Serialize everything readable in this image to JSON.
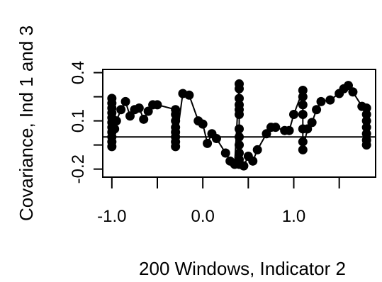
{
  "chart_data": {
    "type": "scatter",
    "connected": true,
    "xlabel": "200 Windows, Indicator 2",
    "ylabel": "Covariance, Ind 1 and 3",
    "xlim": [
      -1.1,
      1.9
    ],
    "ylim": [
      -0.25,
      0.42
    ],
    "xticks": [
      -1.0,
      -0.5,
      0.0,
      0.5,
      1.0,
      1.5
    ],
    "xtick_labels": [
      "-1.0",
      "",
      "0.0",
      "",
      "1.0",
      ""
    ],
    "yticks": [
      -0.2,
      -0.05,
      0.1,
      0.25,
      0.4
    ],
    "ytick_labels": [
      "-0.2",
      "",
      "0.1",
      "",
      "0.4"
    ],
    "hline": 0,
    "grid": false,
    "points": [
      [
        -1.0,
        0.24
      ],
      [
        -1.0,
        0.21
      ],
      [
        -1.0,
        0.18
      ],
      [
        -1.0,
        0.15
      ],
      [
        -1.0,
        0.12
      ],
      [
        -1.0,
        0.09
      ],
      [
        -1.0,
        0.06
      ],
      [
        -1.0,
        0.03
      ],
      [
        -1.0,
        0.0
      ],
      [
        -1.0,
        -0.03
      ],
      [
        -1.0,
        -0.06
      ],
      [
        -0.97,
        0.05
      ],
      [
        -0.95,
        0.1
      ],
      [
        -0.9,
        0.17
      ],
      [
        -0.85,
        0.22
      ],
      [
        -0.8,
        0.13
      ],
      [
        -0.75,
        0.17
      ],
      [
        -0.7,
        0.18
      ],
      [
        -0.65,
        0.11
      ],
      [
        -0.6,
        0.16
      ],
      [
        -0.55,
        0.2
      ],
      [
        -0.5,
        0.2
      ],
      [
        -0.3,
        0.17
      ],
      [
        -0.3,
        0.14
      ],
      [
        -0.3,
        0.1
      ],
      [
        -0.3,
        0.06
      ],
      [
        -0.3,
        0.03
      ],
      [
        -0.3,
        0.0
      ],
      [
        -0.3,
        -0.03
      ],
      [
        -0.3,
        -0.06
      ],
      [
        -0.22,
        0.27
      ],
      [
        -0.15,
        0.26
      ],
      [
        -0.05,
        0.1
      ],
      [
        0.0,
        0.08
      ],
      [
        0.05,
        -0.04
      ],
      [
        0.1,
        0.02
      ],
      [
        0.15,
        -0.01
      ],
      [
        0.25,
        -0.1
      ],
      [
        0.3,
        -0.15
      ],
      [
        0.35,
        -0.17
      ],
      [
        0.4,
        0.33
      ],
      [
        0.4,
        0.3
      ],
      [
        0.4,
        0.24
      ],
      [
        0.4,
        0.2
      ],
      [
        0.4,
        0.17
      ],
      [
        0.4,
        0.14
      ],
      [
        0.4,
        0.05
      ],
      [
        0.4,
        0.0
      ],
      [
        0.4,
        -0.05
      ],
      [
        0.4,
        -0.1
      ],
      [
        0.4,
        -0.14
      ],
      [
        0.4,
        -0.17
      ],
      [
        0.45,
        -0.18
      ],
      [
        0.5,
        -0.12
      ],
      [
        0.55,
        -0.15
      ],
      [
        0.6,
        -0.08
      ],
      [
        0.7,
        0.02
      ],
      [
        0.75,
        0.06
      ],
      [
        0.8,
        0.06
      ],
      [
        0.9,
        0.04
      ],
      [
        0.95,
        0.04
      ],
      [
        1.0,
        0.14
      ],
      [
        1.1,
        0.29
      ],
      [
        1.1,
        0.25
      ],
      [
        1.1,
        0.2
      ],
      [
        1.1,
        0.14
      ],
      [
        1.1,
        0.05
      ],
      [
        1.1,
        -0.03
      ],
      [
        1.1,
        -0.08
      ],
      [
        1.15,
        0.05
      ],
      [
        1.2,
        0.09
      ],
      [
        1.25,
        0.17
      ],
      [
        1.3,
        0.22
      ],
      [
        1.4,
        0.23
      ],
      [
        1.5,
        0.27
      ],
      [
        1.55,
        0.3
      ],
      [
        1.6,
        0.32
      ],
      [
        1.65,
        0.28
      ],
      [
        1.75,
        0.19
      ],
      [
        1.8,
        0.18
      ],
      [
        1.8,
        0.14
      ],
      [
        1.8,
        0.1
      ],
      [
        1.8,
        0.06
      ],
      [
        1.8,
        0.02
      ],
      [
        1.8,
        -0.02
      ],
      [
        1.8,
        -0.05
      ]
    ]
  }
}
